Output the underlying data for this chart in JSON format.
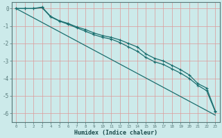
{
  "xlabel": "Humidex (Indice chaleur)",
  "bg_color": "#cceaea",
  "grid_color": "#dd9999",
  "line_color": "#1a6e6e",
  "xlim": [
    -0.5,
    23.5
  ],
  "ylim": [
    -6.5,
    0.35
  ],
  "yticks": [
    0,
    -1,
    -2,
    -3,
    -4,
    -5,
    -6
  ],
  "xticks": [
    0,
    1,
    2,
    3,
    4,
    5,
    6,
    7,
    8,
    9,
    10,
    11,
    12,
    13,
    14,
    15,
    16,
    17,
    18,
    19,
    20,
    21,
    22,
    23
  ],
  "line1_x": [
    0,
    1,
    2,
    3,
    4,
    5,
    6,
    7,
    8,
    9,
    10,
    11,
    12,
    13,
    14,
    15,
    16,
    17,
    18,
    19,
    20,
    21,
    22,
    23
  ],
  "line1_y": [
    0,
    0,
    0,
    0.08,
    -0.45,
    -0.7,
    -0.85,
    -1.05,
    -1.2,
    -1.4,
    -1.55,
    -1.65,
    -1.8,
    -2.0,
    -2.2,
    -2.6,
    -2.85,
    -3.0,
    -3.25,
    -3.5,
    -3.8,
    -4.3,
    -4.55,
    -5.85
  ],
  "line2_x": [
    0,
    1,
    2,
    3,
    4,
    5,
    6,
    7,
    8,
    9,
    10,
    11,
    12,
    13,
    14,
    15,
    16,
    17,
    18,
    19,
    20,
    21,
    22,
    23
  ],
  "line2_y": [
    0,
    0,
    0,
    0.05,
    -0.48,
    -0.72,
    -0.9,
    -1.1,
    -1.3,
    -1.5,
    -1.65,
    -1.75,
    -1.95,
    -2.2,
    -2.45,
    -2.8,
    -3.05,
    -3.2,
    -3.45,
    -3.7,
    -4.0,
    -4.4,
    -4.7,
    -5.9
  ],
  "line3_x": [
    0,
    23
  ],
  "line3_y": [
    0.0,
    -6.1
  ]
}
